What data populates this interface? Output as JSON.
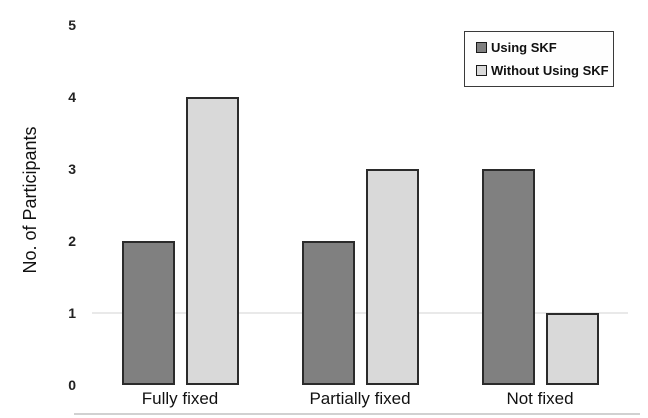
{
  "figure": {
    "background": "#ffffff"
  },
  "chart_data": {
    "type": "bar",
    "title": "",
    "categories": [
      "Fully fixed",
      "Partially fixed",
      "Not fixed"
    ],
    "series": [
      {
        "name": "Using SKF",
        "values": [
          2,
          2,
          3
        ],
        "fill": "#808080",
        "border": "#2b2b2b"
      },
      {
        "name": "Without Using SKF",
        "values": [
          4,
          3,
          1
        ],
        "fill": "#d9d9d9",
        "border": "#2b2b2b"
      }
    ],
    "xlabel": "",
    "ylabel": "No. of Participants",
    "ylim": [
      0,
      5
    ],
    "yticks": [
      0,
      1,
      2,
      3,
      4,
      5
    ],
    "grid": {
      "visible_at": [
        1
      ],
      "color": "#e9e9e9"
    },
    "legend": {
      "position": "top-right",
      "border_color": "#3a3a3a",
      "background": "#fefefe"
    }
  }
}
